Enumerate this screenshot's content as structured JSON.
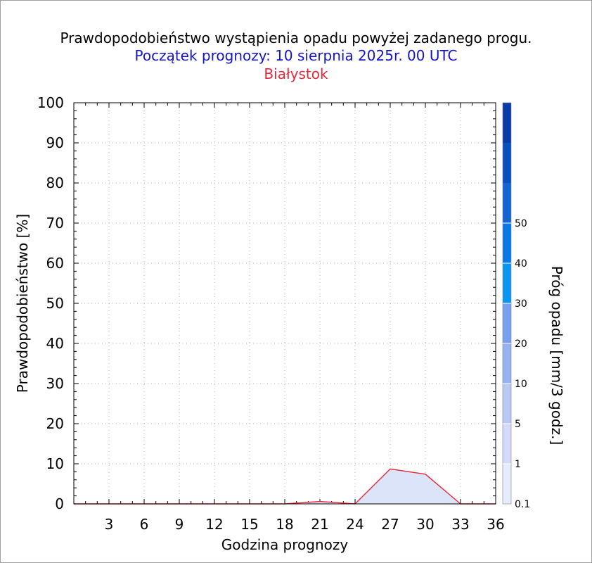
{
  "title": "Prawdopodobieństwo wystąpienia opadu powyżej zadanego progu.",
  "subtitle": "Początek prognozy: 10 sierpnia 2025r. 00 UTC",
  "location": "Białystok",
  "colors": {
    "title": "#000000",
    "subtitle": "#1414c8",
    "location": "#e8283c",
    "series_line": "#e8283c",
    "series_fill": "#dce4fa"
  },
  "chart_data": {
    "type": "area",
    "title": "Prawdopodobieństwo wystąpienia opadu powyżej zadanego progu.",
    "xlabel": "Godzina prognozy",
    "ylabel": "Prawdopodobieństwo [%]",
    "xlim": [
      0,
      36
    ],
    "ylim": [
      0,
      100
    ],
    "x_ticks": [
      3,
      6,
      9,
      12,
      15,
      18,
      21,
      24,
      27,
      30,
      33,
      36
    ],
    "y_ticks": [
      0,
      10,
      20,
      30,
      40,
      50,
      60,
      70,
      80,
      90,
      100
    ],
    "grid": true,
    "series": [
      {
        "x": [
          0,
          3,
          6,
          9,
          12,
          15,
          18,
          21,
          24,
          27,
          30,
          33,
          36
        ],
        "values": [
          0,
          0,
          0,
          0,
          0,
          0,
          0,
          0.6,
          0,
          8.7,
          7.4,
          0,
          0
        ],
        "threshold": "0.1"
      }
    ],
    "colorbar": {
      "label": "Próg opadu [mm/3 godz.]",
      "labels": [
        "0.1",
        "1",
        "5",
        "10",
        "20",
        "30",
        "40",
        "50"
      ],
      "colors": [
        "#e6ecfc",
        "#d2dcfa",
        "#b9c8f5",
        "#96b2f0",
        "#78a0ec",
        "#0a96f0",
        "#0a78e6",
        "#1464d2",
        "#0a4fbe",
        "#0a3ca8"
      ]
    }
  }
}
